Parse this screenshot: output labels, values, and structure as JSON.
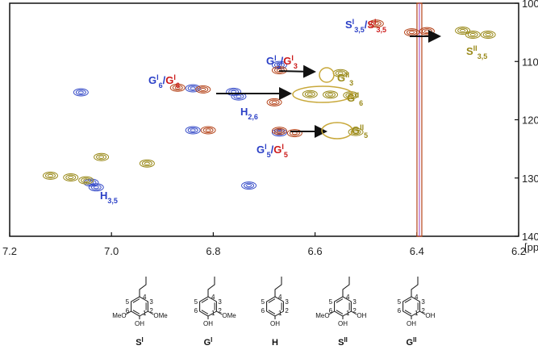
{
  "chart_data": {
    "type": "contour",
    "x_label": "[ppm]",
    "xlim": [
      7.2,
      6.2
    ],
    "ylim": [
      100,
      140
    ],
    "xticks": [
      7.2,
      {
        "value": 7.0,
        "label": "7.0"
      },
      6.8,
      6.6,
      6.4,
      6.2
    ],
    "yticks": [
      100,
      110,
      120,
      130,
      140
    ],
    "peaks": [
      {
        "x": 7.06,
        "y": 115.3,
        "color": "#3a4fc9"
      },
      {
        "x": 7.04,
        "y": 130.8,
        "color": "#3a4fc9"
      },
      {
        "x": 7.03,
        "y": 131.6,
        "color": "#3a4fc9"
      },
      {
        "x": 6.84,
        "y": 114.6,
        "color": "#3a4fc9"
      },
      {
        "x": 6.84,
        "y": 121.8,
        "color": "#3a4fc9"
      },
      {
        "x": 6.76,
        "y": 115.2,
        "color": "#3a4fc9"
      },
      {
        "x": 6.75,
        "y": 116.0,
        "color": "#3a4fc9"
      },
      {
        "x": 6.67,
        "y": 110.6,
        "color": "#3a4fc9"
      },
      {
        "x": 6.67,
        "y": 122.2,
        "color": "#3a4fc9"
      },
      {
        "x": 6.73,
        "y": 131.3,
        "color": "#3a4fc9"
      },
      {
        "x": 6.87,
        "y": 114.5,
        "color": "#b5451b"
      },
      {
        "x": 6.82,
        "y": 114.8,
        "color": "#b5451b"
      },
      {
        "x": 6.81,
        "y": 121.8,
        "color": "#b5451b"
      },
      {
        "x": 6.67,
        "y": 111.5,
        "color": "#b5451b"
      },
      {
        "x": 6.67,
        "y": 121.9,
        "color": "#b5451b"
      },
      {
        "x": 6.64,
        "y": 122.3,
        "color": "#b5451b"
      },
      {
        "x": 6.41,
        "y": 105.0,
        "color": "#b5451b"
      },
      {
        "x": 6.38,
        "y": 104.8,
        "color": "#b5451b"
      },
      {
        "x": 6.48,
        "y": 103.5,
        "color": "#b5451b"
      },
      {
        "x": 6.68,
        "y": 117.0,
        "color": "#b5451b"
      },
      {
        "x": 7.12,
        "y": 129.6,
        "color": "#9a8a1a"
      },
      {
        "x": 7.08,
        "y": 129.9,
        "color": "#9a8a1a"
      },
      {
        "x": 7.05,
        "y": 130.4,
        "color": "#9a8a1a"
      },
      {
        "x": 7.02,
        "y": 126.4,
        "color": "#9a8a1a"
      },
      {
        "x": 6.93,
        "y": 127.5,
        "color": "#9a8a1a"
      },
      {
        "x": 6.61,
        "y": 115.6,
        "color": "#9a8a1a"
      },
      {
        "x": 6.57,
        "y": 115.7,
        "color": "#9a8a1a"
      },
      {
        "x": 6.53,
        "y": 115.8,
        "color": "#9a8a1a"
      },
      {
        "x": 6.55,
        "y": 112.0,
        "color": "#9a8a1a"
      },
      {
        "x": 6.52,
        "y": 122.1,
        "color": "#9a8a1a"
      },
      {
        "x": 6.31,
        "y": 104.7,
        "color": "#9a8a1a"
      },
      {
        "x": 6.29,
        "y": 105.4,
        "color": "#9a8a1a"
      },
      {
        "x": 6.26,
        "y": 105.4,
        "color": "#9a8a1a"
      }
    ],
    "ridges": [
      {
        "x": 6.395,
        "y_from": 100,
        "y_to": 140,
        "color": "#b5451b"
      }
    ],
    "annotations": [
      {
        "color": "#2a3fc6",
        "parts": [
          {
            "text": "G"
          },
          {
            "text": "I",
            "pos": "sup"
          },
          {
            "text": "6",
            "pos": "sub"
          },
          {
            "text": "/"
          },
          {
            "text": "G",
            "color": "#cc1a1a"
          },
          {
            "text": "I",
            "pos": "sup",
            "color": "#cc1a1a"
          },
          {
            "text": "6",
            "pos": "sub",
            "color": "#cc1a1a"
          }
        ]
      },
      {
        "color": "#2a3fc6",
        "parts": [
          {
            "text": "G"
          },
          {
            "text": "I",
            "pos": "sup"
          },
          {
            "text": "3",
            "pos": "sub"
          },
          {
            "text": "/"
          },
          {
            "text": "G",
            "color": "#cc1a1a"
          },
          {
            "text": "I",
            "pos": "sup",
            "color": "#cc1a1a"
          },
          {
            "text": "3",
            "pos": "sub",
            "color": "#cc1a1a"
          }
        ]
      },
      {
        "color": "#2a3fc6",
        "parts": [
          {
            "text": "H"
          },
          {
            "text": "2,6",
            "pos": "sub"
          }
        ]
      },
      {
        "color": "#2a3fc6",
        "parts": [
          {
            "text": "G"
          },
          {
            "text": "I",
            "pos": "sup"
          },
          {
            "text": "5",
            "pos": "sub"
          },
          {
            "text": "/"
          },
          {
            "text": "G",
            "color": "#cc1a1a"
          },
          {
            "text": "I",
            "pos": "sup",
            "color": "#cc1a1a"
          },
          {
            "text": "5",
            "pos": "sub",
            "color": "#cc1a1a"
          }
        ]
      },
      {
        "color": "#2a3fc6",
        "parts": [
          {
            "text": "H"
          },
          {
            "text": "3,5",
            "pos": "sub"
          }
        ]
      },
      {
        "color": "#2a3fc6",
        "parts": [
          {
            "text": "S"
          },
          {
            "text": "I",
            "pos": "sup"
          },
          {
            "text": "3,5",
            "pos": "sub"
          },
          {
            "text": "/"
          },
          {
            "text": "S",
            "color": "#cc1a1a"
          },
          {
            "text": "I",
            "pos": "sup",
            "color": "#cc1a1a"
          },
          {
            "text": "3,5",
            "pos": "sub",
            "color": "#cc1a1a"
          }
        ]
      },
      {
        "color": "#9a8a1a",
        "parts": [
          {
            "text": "G"
          },
          {
            "text": "II",
            "pos": "sup"
          },
          {
            "text": "3",
            "pos": "sub"
          }
        ]
      },
      {
        "color": "#9a8a1a",
        "parts": [
          {
            "text": "G"
          },
          {
            "text": "II",
            "pos": "sup"
          },
          {
            "text": "6",
            "pos": "sub"
          }
        ]
      },
      {
        "color": "#9a8a1a",
        "parts": [
          {
            "text": "G"
          },
          {
            "text": "II",
            "pos": "sup"
          },
          {
            "text": "5",
            "pos": "sub"
          }
        ]
      },
      {
        "color": "#9a8a1a",
        "parts": [
          {
            "text": "S"
          },
          {
            "text": "II",
            "pos": "sup"
          },
          {
            "text": "3,5",
            "pos": "sub"
          }
        ]
      }
    ],
    "structures": [
      {
        "label": "S",
        "sup": "I",
        "numbers": [
          "1",
          "2",
          "3",
          "4",
          "5",
          "6"
        ],
        "left": "MeO",
        "right": "OMe",
        "bottom": "OH"
      },
      {
        "label": "G",
        "sup": "I",
        "numbers": [
          "1",
          "2",
          "3",
          "4",
          "5",
          "6"
        ],
        "right": "OMe",
        "bottom": "OH"
      },
      {
        "label": "H",
        "numbers": [
          "1",
          "2",
          "3",
          "4",
          "5",
          "6"
        ],
        "bottom": "OH"
      },
      {
        "label": "S",
        "sup": "II",
        "numbers": [
          "1",
          "2",
          "3",
          "4",
          "5",
          "6"
        ],
        "left": "MeO",
        "right": "OH",
        "bottom": "OH"
      },
      {
        "label": "G",
        "sup": "II",
        "numbers": [
          "1",
          "2",
          "3",
          "4",
          "5",
          "6"
        ],
        "right": "OH",
        "bottom": "OH"
      }
    ]
  }
}
